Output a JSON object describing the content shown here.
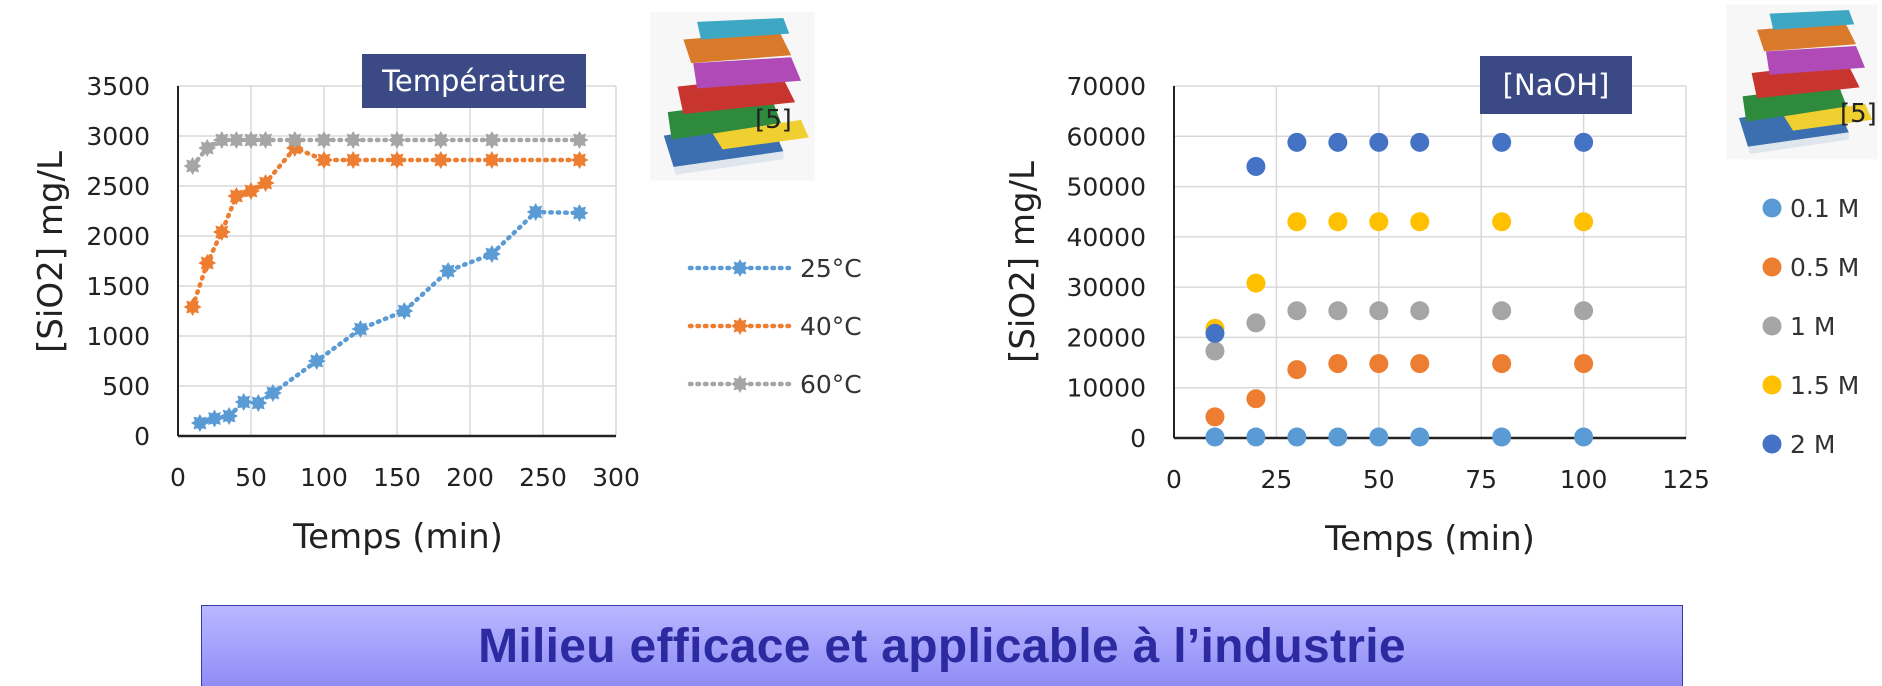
{
  "chart_data": [
    {
      "type": "line",
      "title": "Température",
      "xlabel": "Temps (min)",
      "ylabel": "[SiO2] mg/L",
      "xlim": [
        0,
        300
      ],
      "ylim": [
        0,
        3500
      ],
      "x_ticks": [
        0,
        50,
        100,
        150,
        200,
        250,
        300
      ],
      "y_ticks": [
        0,
        500,
        1000,
        1500,
        2000,
        2500,
        3000,
        3500
      ],
      "grid": true,
      "legend_position": "right",
      "line_style": "dotted",
      "citation": "[5]",
      "series": [
        {
          "name": "25°C",
          "color": "#5b9bd5",
          "x": [
            15,
            25,
            35,
            45,
            55,
            65,
            95,
            125,
            155,
            185,
            215,
            245,
            275
          ],
          "y": [
            130,
            175,
            200,
            340,
            330,
            430,
            750,
            1070,
            1250,
            1650,
            1820,
            2240,
            2230
          ]
        },
        {
          "name": "40°C",
          "color": "#ed7d31",
          "x": [
            10,
            20,
            30,
            40,
            50,
            60,
            80,
            100,
            120,
            150,
            180,
            215,
            275
          ],
          "y": [
            1290,
            1730,
            2040,
            2400,
            2450,
            2530,
            2880,
            2760,
            2760,
            2760,
            2760,
            2760,
            2760
          ]
        },
        {
          "name": "60°C",
          "color": "#a5a5a5",
          "x": [
            10,
            20,
            30,
            40,
            50,
            60,
            80,
            100,
            120,
            150,
            180,
            215,
            275
          ],
          "y": [
            2700,
            2880,
            2960,
            2960,
            2960,
            2960,
            2960,
            2960,
            2960,
            2960,
            2960,
            2960,
            2960
          ]
        }
      ]
    },
    {
      "type": "scatter",
      "title": "[NaOH]",
      "xlabel": "Temps (min)",
      "ylabel": "[SiO2] mg/L",
      "xlim": [
        0,
        125
      ],
      "ylim": [
        0,
        70000
      ],
      "x_ticks": [
        0,
        25,
        50,
        75,
        100,
        125
      ],
      "y_ticks": [
        0,
        10000,
        20000,
        30000,
        40000,
        50000,
        60000,
        70000
      ],
      "grid": true,
      "legend_position": "right",
      "citation": "[5]",
      "series": [
        {
          "name": "0.1 M",
          "color": "#5b9bd5",
          "x": [
            10,
            20,
            30,
            40,
            50,
            60,
            80,
            100
          ],
          "y": [
            200,
            200,
            200,
            200,
            200,
            200,
            200,
            200
          ]
        },
        {
          "name": "0.5 M",
          "color": "#ed7d31",
          "x": [
            10,
            20,
            30,
            40,
            50,
            60,
            80,
            100
          ],
          "y": [
            4200,
            7800,
            13600,
            14800,
            14800,
            14800,
            14800,
            14800
          ]
        },
        {
          "name": "1 M",
          "color": "#a5a5a5",
          "x": [
            10,
            20,
            30,
            40,
            50,
            60,
            80,
            100
          ],
          "y": [
            17300,
            22900,
            25300,
            25300,
            25300,
            25300,
            25300,
            25300
          ]
        },
        {
          "name": "1.5 M",
          "color": "#ffc000",
          "x": [
            10,
            20,
            30,
            40,
            50,
            60,
            80,
            100
          ],
          "y": [
            21800,
            30800,
            43000,
            43000,
            43000,
            43000,
            43000,
            43000
          ]
        },
        {
          "name": "2 M",
          "color": "#4472c4",
          "x": [
            10,
            20,
            30,
            40,
            50,
            60,
            80,
            100
          ],
          "y": [
            20800,
            54000,
            58800,
            58800,
            58800,
            58800,
            58800,
            58800
          ]
        }
      ]
    }
  ],
  "banner": {
    "text": "Milieu efficace et applicable à l’industrie"
  },
  "colors": {
    "title_box": "#3b4a85",
    "banner_text": "#2c2aa0",
    "banner_bg": "#a6a4fb"
  },
  "icons": [
    "books-stack-icon",
    "books-stack-icon"
  ]
}
